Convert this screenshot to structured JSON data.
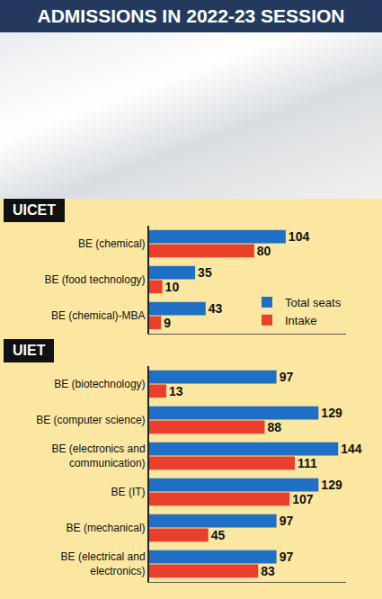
{
  "header": {
    "title": "ADMISSIONS IN 2022-23 SESSION"
  },
  "chart_data": [
    {
      "type": "bar",
      "title": "UICET",
      "orientation": "horizontal",
      "categories": [
        "BE (chemical)",
        "BE (food technology)",
        "BE (chemical)-MBA"
      ],
      "series": [
        {
          "name": "Total seats",
          "color": "#1f6fc4",
          "values": [
            104,
            35,
            43
          ]
        },
        {
          "name": "Intake",
          "color": "#e8402a",
          "values": [
            80,
            10,
            9
          ]
        }
      ],
      "xlim": [
        0,
        150
      ],
      "data_labels": true,
      "tick_labels": "y",
      "grid": false,
      "legend": "bottom right"
    },
    {
      "type": "bar",
      "title": "UIET",
      "orientation": "horizontal",
      "categories": [
        "BE (biotechnology)",
        "BE (computer science)",
        "BE (electronics and communication)",
        "BE (IT)",
        "BE (mechanical)",
        "BE (electrical and electronics)"
      ],
      "series": [
        {
          "name": "Total seats",
          "color": "#1f6fc4",
          "values": [
            97,
            129,
            144,
            129,
            97,
            97
          ]
        },
        {
          "name": "Intake",
          "color": "#e8402a",
          "values": [
            13,
            88,
            111,
            107,
            45,
            83
          ]
        }
      ],
      "xlim": [
        0,
        150
      ],
      "data_labels": true,
      "tick_labels": "y",
      "grid": false
    }
  ]
}
